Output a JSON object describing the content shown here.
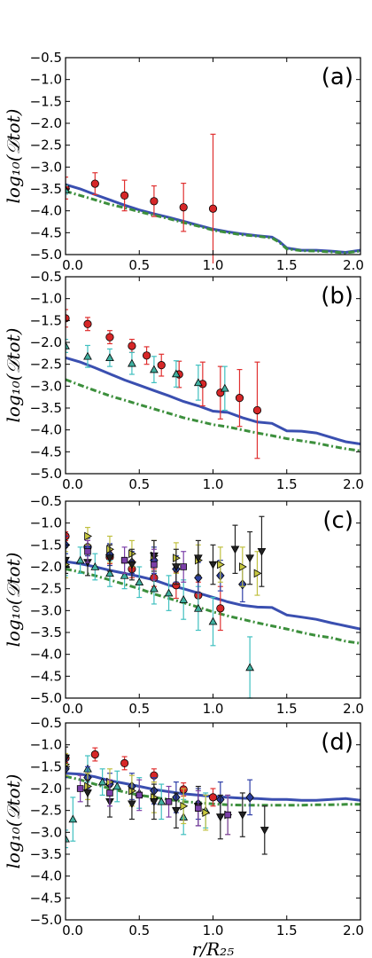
{
  "chart_data": [
    {
      "type": "scatter",
      "panel_label": "(a)",
      "ylabel": "log₁₀(𝒟tot)",
      "xlabel": "",
      "xlim": [
        0,
        2.0
      ],
      "ylim": [
        -5.0,
        -0.5
      ],
      "x_ticks": [
        "0.0",
        "0.5",
        "1.0",
        "1.5",
        "2.0"
      ],
      "y_ticks": [
        "-5.0",
        "-4.5",
        "-4.0",
        "-3.5",
        "-3.0",
        "-2.5",
        "-2.0",
        "-1.5",
        "-1.0",
        "-0.5"
      ],
      "lines": [
        {
          "style": "solid",
          "color": "#3a4fb0",
          "x": [
            0,
            0.1,
            0.2,
            0.3,
            0.4,
            0.5,
            0.6,
            0.7,
            0.8,
            0.9,
            1.0,
            1.1,
            1.2,
            1.3,
            1.4,
            1.45,
            1.5,
            1.6,
            1.7,
            1.8,
            1.9,
            2.0
          ],
          "y": [
            -3.4,
            -3.5,
            -3.63,
            -3.75,
            -3.87,
            -3.98,
            -4.07,
            -4.15,
            -4.24,
            -4.33,
            -4.42,
            -4.48,
            -4.53,
            -4.57,
            -4.6,
            -4.7,
            -4.85,
            -4.9,
            -4.9,
            -4.92,
            -4.95,
            -4.9
          ]
        },
        {
          "style": "dashdot",
          "color": "#3c8f3c",
          "x": [
            0,
            0.1,
            0.2,
            0.3,
            0.4,
            0.5,
            0.6,
            0.7,
            0.8,
            0.9,
            1.0,
            1.1,
            1.2,
            1.3,
            1.4,
            1.45,
            1.5,
            1.6,
            1.7,
            1.8,
            1.9,
            2.0
          ],
          "y": [
            -3.55,
            -3.65,
            -3.75,
            -3.85,
            -3.93,
            -4.02,
            -4.1,
            -4.18,
            -4.27,
            -4.35,
            -4.44,
            -4.5,
            -4.55,
            -4.58,
            -4.62,
            -4.72,
            -4.87,
            -4.91,
            -4.92,
            -4.94,
            -4.96,
            -4.92
          ]
        }
      ],
      "series": [
        {
          "marker": "circle",
          "color": "#d62728",
          "ecolor": "#e03030",
          "x": [
            0,
            0.2,
            0.4,
            0.6,
            0.8,
            1.0
          ],
          "y": [
            -3.48,
            -3.38,
            -3.65,
            -3.78,
            -3.92,
            -3.95
          ],
          "err": [
            0.25,
            0.25,
            0.35,
            0.35,
            0.55,
            1.7
          ]
        },
        {
          "marker": "triangle-up",
          "color": "#40b0a0",
          "ecolor": "#40c0c0",
          "x": [
            0.0
          ],
          "y": [
            -3.52
          ],
          "err": [
            0.1
          ]
        }
      ]
    },
    {
      "type": "scatter",
      "panel_label": "(b)",
      "ylabel": "log₁₀(𝒟tot)",
      "xlabel": "",
      "xlim": [
        0,
        2.0
      ],
      "ylim": [
        -5.0,
        -0.5
      ],
      "x_ticks": [
        "0.0",
        "0.5",
        "1.0",
        "1.5",
        "2.0"
      ],
      "y_ticks": [
        "-5.0",
        "-4.5",
        "-4.0",
        "-3.5",
        "-3.0",
        "-2.5",
        "-2.0",
        "-1.5",
        "-1.0",
        "-0.5"
      ],
      "lines": [
        {
          "style": "solid",
          "color": "#3a4fb0",
          "x": [
            0,
            0.1,
            0.2,
            0.3,
            0.4,
            0.5,
            0.6,
            0.7,
            0.8,
            0.9,
            1.0,
            1.1,
            1.2,
            1.3,
            1.4,
            1.5,
            1.6,
            1.7,
            1.8,
            1.9,
            2.0
          ],
          "y": [
            -2.35,
            -2.45,
            -2.58,
            -2.72,
            -2.86,
            -2.98,
            -3.1,
            -3.22,
            -3.35,
            -3.45,
            -3.57,
            -3.6,
            -3.72,
            -3.82,
            -3.85,
            -4.02,
            -4.03,
            -4.07,
            -4.17,
            -4.27,
            -4.32
          ]
        },
        {
          "style": "dashdot",
          "color": "#3c8f3c",
          "x": [
            0,
            0.1,
            0.2,
            0.3,
            0.4,
            0.5,
            0.6,
            0.7,
            0.8,
            0.9,
            1.0,
            1.1,
            1.2,
            1.3,
            1.4,
            1.5,
            1.6,
            1.7,
            1.8,
            1.9,
            2.0
          ],
          "y": [
            -2.85,
            -2.98,
            -3.1,
            -3.22,
            -3.32,
            -3.42,
            -3.52,
            -3.62,
            -3.72,
            -3.8,
            -3.88,
            -3.93,
            -4.0,
            -4.07,
            -4.13,
            -4.2,
            -4.25,
            -4.3,
            -4.37,
            -4.43,
            -4.48
          ]
        }
      ],
      "series": [
        {
          "marker": "circle",
          "color": "#d62728",
          "ecolor": "#e03030",
          "x": [
            0.0,
            0.15,
            0.3,
            0.45,
            0.55,
            0.65,
            0.77,
            0.93,
            1.05,
            1.18,
            1.3
          ],
          "y": [
            -1.45,
            -1.58,
            -1.88,
            -2.08,
            -2.3,
            -2.52,
            -2.73,
            -2.95,
            -3.15,
            -3.27,
            -3.55
          ],
          "err": [
            0.2,
            0.15,
            0.15,
            0.15,
            0.2,
            0.25,
            0.3,
            0.5,
            0.6,
            0.65,
            1.1
          ]
        },
        {
          "marker": "triangle-up",
          "color": "#40b0a0",
          "ecolor": "#40c0c0",
          "x": [
            0.0,
            0.15,
            0.3,
            0.45,
            0.6,
            0.75,
            0.9,
            1.08
          ],
          "y": [
            -2.08,
            -2.32,
            -2.35,
            -2.48,
            -2.62,
            -2.72,
            -2.92,
            -3.05
          ],
          "err": [
            0.15,
            0.25,
            0.2,
            0.25,
            0.3,
            0.3,
            0.4,
            0.5
          ]
        }
      ]
    },
    {
      "type": "scatter",
      "panel_label": "(c)",
      "ylabel": "log₁₀(𝒟tot)",
      "xlabel": "",
      "xlim": [
        0,
        2.0
      ],
      "ylim": [
        -5.0,
        -0.5
      ],
      "x_ticks": [
        "0.0",
        "0.5",
        "1.0",
        "1.5",
        "2.0"
      ],
      "y_ticks": [
        "-5.0",
        "-4.5",
        "-4.0",
        "-3.5",
        "-3.0",
        "-2.5",
        "-2.0",
        "-1.5",
        "-1.0",
        "-0.5"
      ],
      "lines": [
        {
          "style": "solid",
          "color": "#3a4fb0",
          "x": [
            0,
            0.1,
            0.2,
            0.3,
            0.4,
            0.5,
            0.6,
            0.7,
            0.8,
            0.9,
            1.0,
            1.1,
            1.2,
            1.3,
            1.4,
            1.5,
            1.6,
            1.7,
            1.8,
            1.9,
            2.0
          ],
          "y": [
            -1.88,
            -1.93,
            -2.0,
            -2.08,
            -2.15,
            -2.22,
            -2.3,
            -2.42,
            -2.5,
            -2.6,
            -2.7,
            -2.8,
            -2.88,
            -2.92,
            -2.93,
            -3.1,
            -3.15,
            -3.2,
            -3.28,
            -3.35,
            -3.42
          ]
        },
        {
          "style": "dashdot",
          "color": "#3c8f3c",
          "x": [
            0,
            0.1,
            0.2,
            0.3,
            0.4,
            0.5,
            0.6,
            0.7,
            0.8,
            0.9,
            1.0,
            1.1,
            1.2,
            1.3,
            1.4,
            1.5,
            1.6,
            1.7,
            1.8,
            1.9,
            2.0
          ],
          "y": [
            -2.05,
            -2.12,
            -2.2,
            -2.3,
            -2.4,
            -2.5,
            -2.62,
            -2.72,
            -2.82,
            -2.92,
            -3.03,
            -3.12,
            -3.2,
            -3.28,
            -3.35,
            -3.42,
            -3.5,
            -3.57,
            -3.62,
            -3.7,
            -3.75
          ]
        }
      ],
      "series": [
        {
          "marker": "circle",
          "color": "#d62728",
          "ecolor": "#e03030",
          "x": [
            0.0,
            0.15,
            0.3,
            0.45,
            0.6,
            0.75,
            0.9,
            1.05
          ],
          "y": [
            -1.3,
            -1.55,
            -1.78,
            -2.05,
            -2.25,
            -2.42,
            -2.65,
            -2.95
          ],
          "err": [
            0.1,
            0.15,
            0.15,
            0.2,
            0.2,
            0.3,
            0.3,
            0.5
          ]
        },
        {
          "marker": "triangle-up",
          "color": "#40b0a0",
          "ecolor": "#40c0c0",
          "x": [
            0.0,
            0.1,
            0.2,
            0.3,
            0.4,
            0.5,
            0.6,
            0.7,
            0.8,
            0.9,
            1.0,
            1.25
          ],
          "y": [
            -1.95,
            -1.85,
            -2.0,
            -2.15,
            -2.2,
            -2.35,
            -2.5,
            -2.6,
            -2.75,
            -2.95,
            -3.25,
            -4.3
          ],
          "err": [
            0.25,
            0.3,
            0.3,
            0.3,
            0.3,
            0.35,
            0.35,
            0.4,
            0.45,
            0.5,
            0.55,
            0.7
          ]
        },
        {
          "marker": "diamond",
          "color": "#2c3f9e",
          "ecolor": "#3040a8",
          "x": [
            0.0,
            0.15,
            0.3,
            0.45,
            0.6,
            0.75,
            0.9,
            1.05,
            1.2
          ],
          "y": [
            -1.5,
            -1.55,
            -1.72,
            -1.9,
            -1.85,
            -2.05,
            -2.25,
            -2.2,
            -2.4
          ],
          "err": [
            0.2,
            0.2,
            0.25,
            0.25,
            0.3,
            0.3,
            0.35,
            0.35,
            0.4
          ]
        },
        {
          "marker": "triangle-right",
          "color": "#c8c840",
          "ecolor": "#c0c040",
          "x": [
            0.0,
            0.15,
            0.3,
            0.45,
            0.6,
            0.75,
            0.9,
            1.05,
            1.2,
            1.3
          ],
          "y": [
            -1.95,
            -1.3,
            -1.6,
            -1.7,
            -1.75,
            -1.8,
            -1.85,
            -1.95,
            -2.0,
            -2.15
          ],
          "err": [
            0.3,
            0.2,
            0.3,
            0.3,
            0.35,
            0.35,
            0.35,
            0.4,
            0.45,
            0.5
          ]
        },
        {
          "marker": "triangle-down",
          "color": "#222222",
          "ecolor": "#222222",
          "x": [
            0.0,
            0.15,
            0.3,
            0.45,
            0.6,
            0.75,
            0.9,
            1.0,
            1.15,
            1.25,
            1.33
          ],
          "y": [
            -1.85,
            -1.9,
            -1.8,
            -1.95,
            -1.75,
            -2.0,
            -1.8,
            -1.95,
            -1.6,
            -1.8,
            -1.65
          ],
          "err": [
            0.3,
            0.3,
            0.3,
            0.35,
            0.35,
            0.4,
            0.4,
            0.45,
            0.55,
            0.6,
            0.8
          ]
        },
        {
          "marker": "square",
          "color": "#7b3fa8",
          "ecolor": "#7b3fa8",
          "x": [
            0.15,
            0.4,
            0.6,
            0.8
          ],
          "y": [
            -1.65,
            -1.85,
            -1.95,
            -2.0
          ],
          "err": [
            0.25,
            0.3,
            0.35,
            0.35
          ]
        }
      ]
    },
    {
      "type": "scatter",
      "panel_label": "(d)",
      "ylabel": "log₁₀(𝒟tot)",
      "xlabel": "r/R₂₅",
      "xlim": [
        0,
        2.0
      ],
      "ylim": [
        -5.0,
        -0.5
      ],
      "x_ticks": [
        "0.0",
        "0.5",
        "1.0",
        "1.5",
        "2.0"
      ],
      "y_ticks": [
        "-5.0",
        "-4.5",
        "-4.0",
        "-3.5",
        "-3.0",
        "-2.5",
        "-2.0",
        "-1.5",
        "-1.0",
        "-0.5"
      ],
      "lines": [
        {
          "style": "solid",
          "color": "#3a4fb0",
          "x": [
            0,
            0.1,
            0.2,
            0.3,
            0.4,
            0.5,
            0.6,
            0.7,
            0.8,
            0.9,
            1.0,
            1.1,
            1.2,
            1.3,
            1.4,
            1.5,
            1.6,
            1.7,
            1.8,
            1.9,
            2.0
          ],
          "y": [
            -1.65,
            -1.67,
            -1.73,
            -1.82,
            -1.88,
            -1.95,
            -2.02,
            -2.07,
            -2.12,
            -2.15,
            -2.18,
            -2.2,
            -2.22,
            -2.23,
            -2.25,
            -2.25,
            -2.27,
            -2.27,
            -2.25,
            -2.23,
            -2.27
          ]
        },
        {
          "style": "dashdot",
          "color": "#3c8f3c",
          "x": [
            0,
            0.1,
            0.2,
            0.3,
            0.4,
            0.5,
            0.6,
            0.7,
            0.8,
            0.9,
            1.0,
            1.1,
            1.2,
            1.3,
            1.4,
            1.5,
            1.6,
            1.7,
            1.8,
            1.9,
            2.0
          ],
          "y": [
            -1.72,
            -1.8,
            -1.9,
            -2.0,
            -2.08,
            -2.15,
            -2.2,
            -2.25,
            -2.3,
            -2.32,
            -2.35,
            -2.37,
            -2.38,
            -2.38,
            -2.38,
            -2.38,
            -2.38,
            -2.37,
            -2.37,
            -2.36,
            -2.36
          ]
        }
      ],
      "series": [
        {
          "marker": "circle",
          "color": "#d62728",
          "ecolor": "#e03030",
          "x": [
            0.0,
            0.2,
            0.4,
            0.6,
            0.8,
            1.0
          ],
          "y": [
            -1.3,
            -1.22,
            -1.42,
            -1.7,
            -2.02,
            -2.2
          ],
          "err": [
            0.1,
            0.15,
            0.15,
            0.15,
            0.15,
            0.2
          ]
        },
        {
          "marker": "triangle-up",
          "color": "#40b0a0",
          "ecolor": "#40c0c0",
          "x": [
            0.0,
            0.05,
            0.15,
            0.25,
            0.35,
            0.5,
            0.65,
            0.8,
            0.95
          ],
          "y": [
            -3.15,
            -2.7,
            -1.55,
            -1.85,
            -1.95,
            -2.1,
            -2.3,
            -2.65,
            -2.5
          ],
          "err": [
            0.2,
            0.5,
            0.3,
            0.3,
            0.35,
            0.35,
            0.4,
            0.4,
            0.4
          ]
        },
        {
          "marker": "diamond",
          "color": "#2c3f9e",
          "ecolor": "#3040a8",
          "x": [
            0.0,
            0.15,
            0.3,
            0.45,
            0.6,
            0.75,
            0.9,
            1.05,
            1.25
          ],
          "y": [
            -1.55,
            -1.75,
            -1.9,
            -1.95,
            -2.05,
            -2.2,
            -2.35,
            -2.25,
            -2.2
          ],
          "err": [
            0.2,
            0.25,
            0.25,
            0.3,
            0.3,
            0.35,
            0.35,
            0.4,
            0.4
          ]
        },
        {
          "marker": "triangle-right",
          "color": "#c8c840",
          "ecolor": "#c0c040",
          "x": [
            0.0,
            0.15,
            0.3,
            0.45,
            0.6,
            0.8,
            0.95,
            1.1
          ],
          "y": [
            -1.45,
            -1.95,
            -1.85,
            -2.05,
            -2.2,
            -2.4,
            -2.55,
            -2.6
          ],
          "err": [
            0.25,
            0.3,
            0.3,
            0.35,
            0.35,
            0.4,
            0.4,
            0.45
          ]
        },
        {
          "marker": "triangle-down",
          "color": "#222222",
          "ecolor": "#222222",
          "x": [
            0.0,
            0.15,
            0.3,
            0.45,
            0.6,
            0.75,
            0.9,
            1.05,
            1.2,
            1.35
          ],
          "y": [
            -1.3,
            -2.1,
            -2.3,
            -2.35,
            -2.3,
            -2.5,
            -2.4,
            -2.65,
            -2.6,
            -2.95
          ],
          "err": [
            0.25,
            0.3,
            0.35,
            0.35,
            0.4,
            0.4,
            0.45,
            0.5,
            0.5,
            0.55
          ]
        },
        {
          "marker": "square",
          "color": "#7b3fa8",
          "ecolor": "#7b3fa8",
          "x": [
            0.1,
            0.3,
            0.5,
            0.7,
            0.9,
            1.1
          ],
          "y": [
            -2.0,
            -2.1,
            -2.15,
            -2.3,
            -2.45,
            -2.6
          ],
          "err": [
            0.3,
            0.3,
            0.35,
            0.35,
            0.4,
            0.45
          ]
        }
      ]
    }
  ]
}
